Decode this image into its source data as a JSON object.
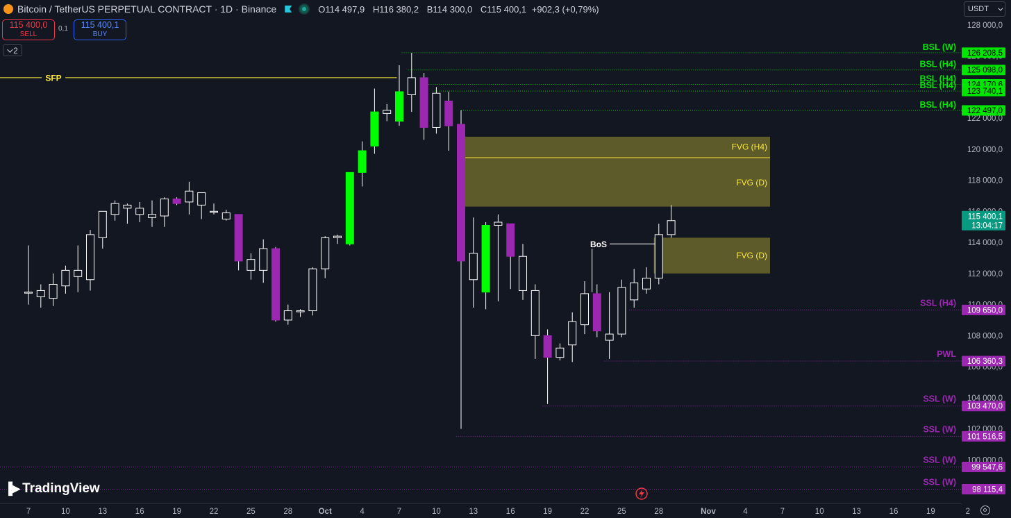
{
  "header": {
    "title": "Bitcoin / TetherUS PERPETUAL CONTRACT · 1D · Binance",
    "ohlc": {
      "o_label": "O",
      "o": "114 497,9",
      "h_label": "H",
      "h": "116 380,2",
      "l_label": "B",
      "l": "114 300,0",
      "c_label": "C",
      "c": "115 400,1",
      "change": "+902,3 (+0,79%)"
    }
  },
  "trade": {
    "sell_price": "115 400,0",
    "sell_label": "SELL",
    "spread": "0,1",
    "buy_price": "115 400,1",
    "buy_label": "BUY"
  },
  "indicator_count": "2",
  "currency": "USDT",
  "logo": "TradingView",
  "colors": {
    "background": "#131722",
    "bull_candle": "#00ff00",
    "bear_candle": "#9c27b0",
    "neutral_candle_border": "#ffffff",
    "bsl": "#00e600",
    "ssl": "#9c27b0",
    "fvg": "#ffeb3b",
    "sfp": "#ffeb3b",
    "last_price": "#089981"
  },
  "chart_data": {
    "type": "candlestick",
    "symbol": "Bitcoin / TetherUS PERPETUAL CONTRACT",
    "interval": "1D",
    "exchange": "Binance",
    "ylim": [
      97200,
      129600
    ],
    "y_ticks": [
      {
        "value": 128000,
        "label": "128 000,0"
      },
      {
        "value": 126000,
        "label": "126 000,0"
      },
      {
        "value": 124000,
        "label": "124 000,0"
      },
      {
        "value": 122000,
        "label": "122 000,0"
      },
      {
        "value": 120000,
        "label": "120 000,0"
      },
      {
        "value": 118000,
        "label": "118 000,0"
      },
      {
        "value": 116000,
        "label": "116 000,0"
      },
      {
        "value": 114000,
        "label": "114 000,0"
      },
      {
        "value": 112000,
        "label": "112 000,0"
      },
      {
        "value": 110000,
        "label": "110 000,0"
      },
      {
        "value": 108000,
        "label": "108 000,0"
      },
      {
        "value": 106000,
        "label": "106 000,0"
      },
      {
        "value": 104000,
        "label": "104 000,0"
      },
      {
        "value": 102000,
        "label": "102 000,0"
      },
      {
        "value": 100000,
        "label": "100 000,0"
      }
    ],
    "x_ticks": [
      {
        "day": 0,
        "label": "7"
      },
      {
        "day": 3,
        "label": "10"
      },
      {
        "day": 6,
        "label": "13"
      },
      {
        "day": 9,
        "label": "16"
      },
      {
        "day": 12,
        "label": "19"
      },
      {
        "day": 15,
        "label": "22"
      },
      {
        "day": 18,
        "label": "25"
      },
      {
        "day": 21,
        "label": "28"
      },
      {
        "day": 24,
        "label": "Oct"
      },
      {
        "day": 27,
        "label": "4"
      },
      {
        "day": 30,
        "label": "7"
      },
      {
        "day": 33,
        "label": "10"
      },
      {
        "day": 36,
        "label": "13"
      },
      {
        "day": 39,
        "label": "16"
      },
      {
        "day": 42,
        "label": "19"
      },
      {
        "day": 45,
        "label": "22"
      },
      {
        "day": 48,
        "label": "25"
      },
      {
        "day": 51,
        "label": "28"
      },
      {
        "day": 55,
        "label": "Nov"
      },
      {
        "day": 58,
        "label": "4"
      },
      {
        "day": 61,
        "label": "7"
      },
      {
        "day": 64,
        "label": "10"
      },
      {
        "day": 67,
        "label": "13"
      },
      {
        "day": 70,
        "label": "16"
      },
      {
        "day": 73,
        "label": "19"
      },
      {
        "day": 76,
        "label": "2"
      }
    ],
    "candles": [
      {
        "o": 110800,
        "h": 113800,
        "l": 110000,
        "c": 110800,
        "t": "n"
      },
      {
        "o": 110500,
        "h": 111300,
        "l": 109800,
        "c": 110900,
        "t": "n"
      },
      {
        "o": 110400,
        "h": 112000,
        "l": 109900,
        "c": 111300,
        "t": "n"
      },
      {
        "o": 111200,
        "h": 112500,
        "l": 110700,
        "c": 112200,
        "t": "n"
      },
      {
        "o": 111800,
        "h": 113800,
        "l": 110800,
        "c": 112200,
        "t": "n"
      },
      {
        "o": 111600,
        "h": 114800,
        "l": 110900,
        "c": 114500,
        "t": "n"
      },
      {
        "o": 114300,
        "h": 116000,
        "l": 113600,
        "c": 116000,
        "t": "n"
      },
      {
        "o": 115800,
        "h": 116700,
        "l": 115400,
        "c": 116500,
        "t": "n"
      },
      {
        "o": 116200,
        "h": 116500,
        "l": 115200,
        "c": 116400,
        "t": "n"
      },
      {
        "o": 115800,
        "h": 116600,
        "l": 115300,
        "c": 116200,
        "t": "n"
      },
      {
        "o": 115600,
        "h": 116700,
        "l": 115000,
        "c": 115800,
        "t": "n"
      },
      {
        "o": 115700,
        "h": 116900,
        "l": 115000,
        "c": 116800,
        "t": "n"
      },
      {
        "o": 116800,
        "h": 116900,
        "l": 116400,
        "c": 116500,
        "t": "r"
      },
      {
        "o": 116600,
        "h": 117900,
        "l": 115800,
        "c": 117300,
        "t": "n"
      },
      {
        "o": 116400,
        "h": 117200,
        "l": 115500,
        "c": 117200,
        "t": "n"
      },
      {
        "o": 116000,
        "h": 116500,
        "l": 115800,
        "c": 116000,
        "t": "n"
      },
      {
        "o": 115900,
        "h": 116100,
        "l": 115400,
        "c": 115500,
        "t": "n"
      },
      {
        "o": 115800,
        "h": 115800,
        "l": 112200,
        "c": 112800,
        "t": "r"
      },
      {
        "o": 112200,
        "h": 113300,
        "l": 111600,
        "c": 112900,
        "t": "n"
      },
      {
        "o": 112200,
        "h": 114200,
        "l": 111400,
        "c": 113600,
        "t": "n"
      },
      {
        "o": 113600,
        "h": 113700,
        "l": 108900,
        "c": 109000,
        "t": "r"
      },
      {
        "o": 109000,
        "h": 110000,
        "l": 108700,
        "c": 109600,
        "t": "n"
      },
      {
        "o": 109600,
        "h": 109700,
        "l": 109200,
        "c": 109600,
        "t": "n"
      },
      {
        "o": 109600,
        "h": 112400,
        "l": 109300,
        "c": 112300,
        "t": "n"
      },
      {
        "o": 112300,
        "h": 114400,
        "l": 111700,
        "c": 114300,
        "t": "n"
      },
      {
        "o": 114300,
        "h": 114500,
        "l": 113900,
        "c": 114400,
        "t": "n"
      },
      {
        "o": 113900,
        "h": 118500,
        "l": 113800,
        "c": 118500,
        "t": "g"
      },
      {
        "o": 118500,
        "h": 120500,
        "l": 117600,
        "c": 119900,
        "t": "g"
      },
      {
        "o": 120200,
        "h": 123900,
        "l": 119700,
        "c": 122400,
        "t": "g"
      },
      {
        "o": 122300,
        "h": 122900,
        "l": 121800,
        "c": 122500,
        "t": "n"
      },
      {
        "o": 121800,
        "h": 125400,
        "l": 121500,
        "c": 123700,
        "t": "g"
      },
      {
        "o": 123500,
        "h": 126200,
        "l": 122400,
        "c": 124600,
        "t": "n"
      },
      {
        "o": 124600,
        "h": 124900,
        "l": 120600,
        "c": 121400,
        "t": "r"
      },
      {
        "o": 121400,
        "h": 124000,
        "l": 121000,
        "c": 123600,
        "t": "n"
      },
      {
        "o": 123100,
        "h": 123700,
        "l": 119900,
        "c": 121500,
        "t": "r"
      },
      {
        "o": 121600,
        "h": 122500,
        "l": 102000,
        "c": 112800,
        "t": "r"
      },
      {
        "o": 111600,
        "h": 115600,
        "l": 109800,
        "c": 113300,
        "t": "n"
      },
      {
        "o": 110800,
        "h": 115300,
        "l": 109700,
        "c": 115100,
        "t": "g"
      },
      {
        "o": 115100,
        "h": 115800,
        "l": 110200,
        "c": 115300,
        "t": "n"
      },
      {
        "o": 115200,
        "h": 115200,
        "l": 111000,
        "c": 113100,
        "t": "r"
      },
      {
        "o": 113100,
        "h": 113900,
        "l": 110300,
        "c": 110900,
        "t": "n"
      },
      {
        "o": 110900,
        "h": 111300,
        "l": 106500,
        "c": 108000,
        "t": "n"
      },
      {
        "o": 108000,
        "h": 108400,
        "l": 103600,
        "c": 106600,
        "t": "r"
      },
      {
        "o": 106600,
        "h": 107500,
        "l": 106400,
        "c": 107200,
        "t": "n"
      },
      {
        "o": 107400,
        "h": 109500,
        "l": 106300,
        "c": 108900,
        "t": "n"
      },
      {
        "o": 108700,
        "h": 111500,
        "l": 108100,
        "c": 110700,
        "t": "n"
      },
      {
        "o": 110700,
        "h": 111300,
        "l": 107900,
        "c": 108300,
        "t": "r"
      },
      {
        "o": 107700,
        "h": 110800,
        "l": 106500,
        "c": 108100,
        "t": "n"
      },
      {
        "o": 108100,
        "h": 111600,
        "l": 107900,
        "c": 111100,
        "t": "n"
      },
      {
        "o": 110300,
        "h": 112300,
        "l": 109800,
        "c": 111400,
        "t": "n"
      },
      {
        "o": 111000,
        "h": 112400,
        "l": 110700,
        "c": 111700,
        "t": "n"
      },
      {
        "o": 111700,
        "h": 115200,
        "l": 111300,
        "c": 114500,
        "t": "n"
      },
      {
        "o": 114500,
        "h": 116400,
        "l": 114300,
        "c": 115400,
        "t": "n"
      }
    ],
    "levels": [
      {
        "label": "BSL (W)",
        "price": 126208.5,
        "price_label": "126 208,5",
        "kind": "bsl",
        "from_day": 30.2,
        "label_dx": 0
      },
      {
        "label": "BSL (H4)",
        "price": 125098.0,
        "price_label": "125 098,0",
        "kind": "bsl",
        "from_day": 30.7,
        "label_dx": 0
      },
      {
        "label": "BSL (H4)",
        "price": 124170.6,
        "price_label": "124 170,6",
        "kind": "bsl",
        "from_day": 31.7,
        "label_dx": 0
      },
      {
        "label": "BSL (H4)",
        "price": 123740.1,
        "price_label": "123 740,1",
        "kind": "bsl",
        "from_day": 32.7,
        "label_dx": 0
      },
      {
        "label": "BSL (H4)",
        "price": 122497.0,
        "price_label": "122 497,0",
        "kind": "bsl",
        "from_day": 35.0,
        "label_dx": 0
      },
      {
        "label": "SSL (H4)",
        "price": 109650.0,
        "price_label": "109 650,0",
        "kind": "ssl",
        "from_day": 48.6,
        "label_dx": 0
      },
      {
        "label": "PWL",
        "price": 106360.3,
        "price_label": "106 360,3",
        "kind": "ssl",
        "from_day": 46.6,
        "label_dx": 0
      },
      {
        "label": "SSL (W)",
        "price": 103470.0,
        "price_label": "103 470,0",
        "kind": "ssl",
        "from_day": 41.6,
        "label_dx": 0
      },
      {
        "label": "SSL (W)",
        "price": 101516.5,
        "price_label": "101 516,5",
        "kind": "ssl",
        "from_day": 34.6,
        "label_dx": 0
      },
      {
        "label": "SSL (W)",
        "price": 99547.6,
        "price_label": "99 547,6",
        "kind": "ssl",
        "from_day": -1,
        "label_dx": 0
      },
      {
        "label": "SSL (W)",
        "price": 98115.4,
        "price_label": "98 115,4",
        "kind": "ssl",
        "from_day": -1,
        "label_dx": 0
      }
    ],
    "fvgs": [
      {
        "label": "FVG (H4)",
        "from_day": 35.0,
        "to_day": 60.0,
        "top": 120800,
        "bottom": 119500
      },
      {
        "label": "FVG (D)",
        "from_day": 35.0,
        "to_day": 60.0,
        "top": 119400,
        "bottom": 116300
      },
      {
        "label": "FVG (D)",
        "from_day": 50.6,
        "to_day": 60.0,
        "top": 114300,
        "bottom": 112000
      }
    ],
    "sfp": {
      "label": "SFP",
      "price": 124600,
      "to_day": 29.8
    },
    "bos": {
      "label": "BoS",
      "price": 113900,
      "from_day": 45.6,
      "to_day": 50.8
    },
    "last_price": {
      "value": 115400.1,
      "label": "115 400,1",
      "countdown": "13:04:17"
    }
  }
}
